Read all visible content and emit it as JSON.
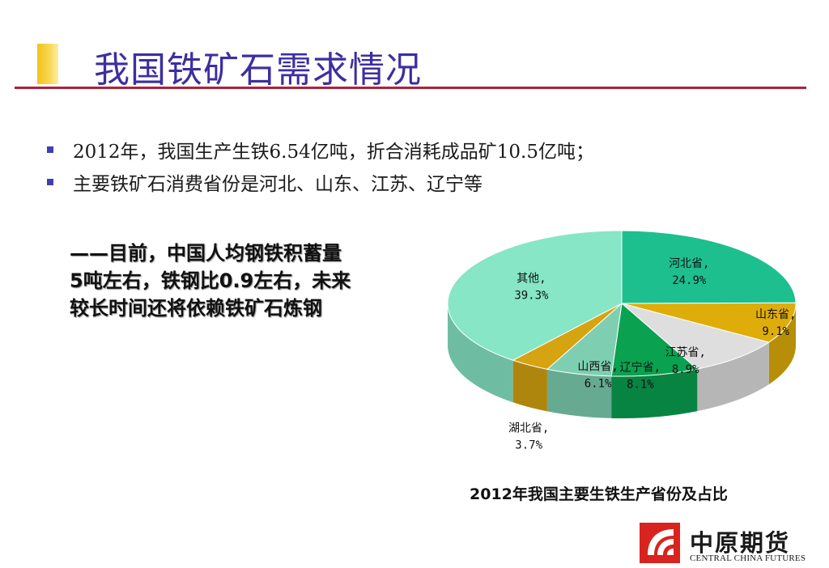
{
  "slide": {
    "title": "我国铁矿石需求情况",
    "bullets": [
      "2012年，我国生产生铁6.54亿吨，折合消耗成品矿10.5亿吨；",
      "主要铁矿石消费省份是河北、山东、江苏、辽宁等"
    ],
    "quote_lines": [
      "——目前，中国人均钢铁积蓄量",
      "5吨左右，铁钢比0.9左右，未来",
      "较长时间还将依赖铁矿石炼钢"
    ],
    "caption": "2012年我国主要生铁生产省份及占比"
  },
  "logo": {
    "name_cn": "中原期货",
    "name_en": "CENTRAL CHINA FUTURES"
  },
  "colors": {
    "title": "#3b2fa0",
    "rule": "#b0203a",
    "accent": "#f3c219",
    "bullet": "#3f3fb3"
  },
  "chart_data": {
    "type": "pie",
    "title": "2012年我国主要生铁生产省份及占比",
    "slices": [
      {
        "label": "河北省",
        "value": 24.9,
        "display": "24.9%",
        "color": "#1dbf8f"
      },
      {
        "label": "山东省",
        "value": 9.1,
        "display": "9.1%",
        "color": "#dfad0a"
      },
      {
        "label": "江苏省",
        "value": 8.9,
        "display": "8.9%",
        "color": "#dedede"
      },
      {
        "label": "辽宁省",
        "value": 8.1,
        "display": "8.1%",
        "color": "#0aa150"
      },
      {
        "label": "山西省",
        "value": 6.1,
        "display": "6.1%",
        "color": "#7ecfb2"
      },
      {
        "label": "湖北省",
        "value": 3.7,
        "display": "3.7%",
        "color": "#d6a410"
      },
      {
        "label": "其他",
        "value": 39.3,
        "display": "39.3%",
        "color": "#86e6c6"
      }
    ]
  }
}
